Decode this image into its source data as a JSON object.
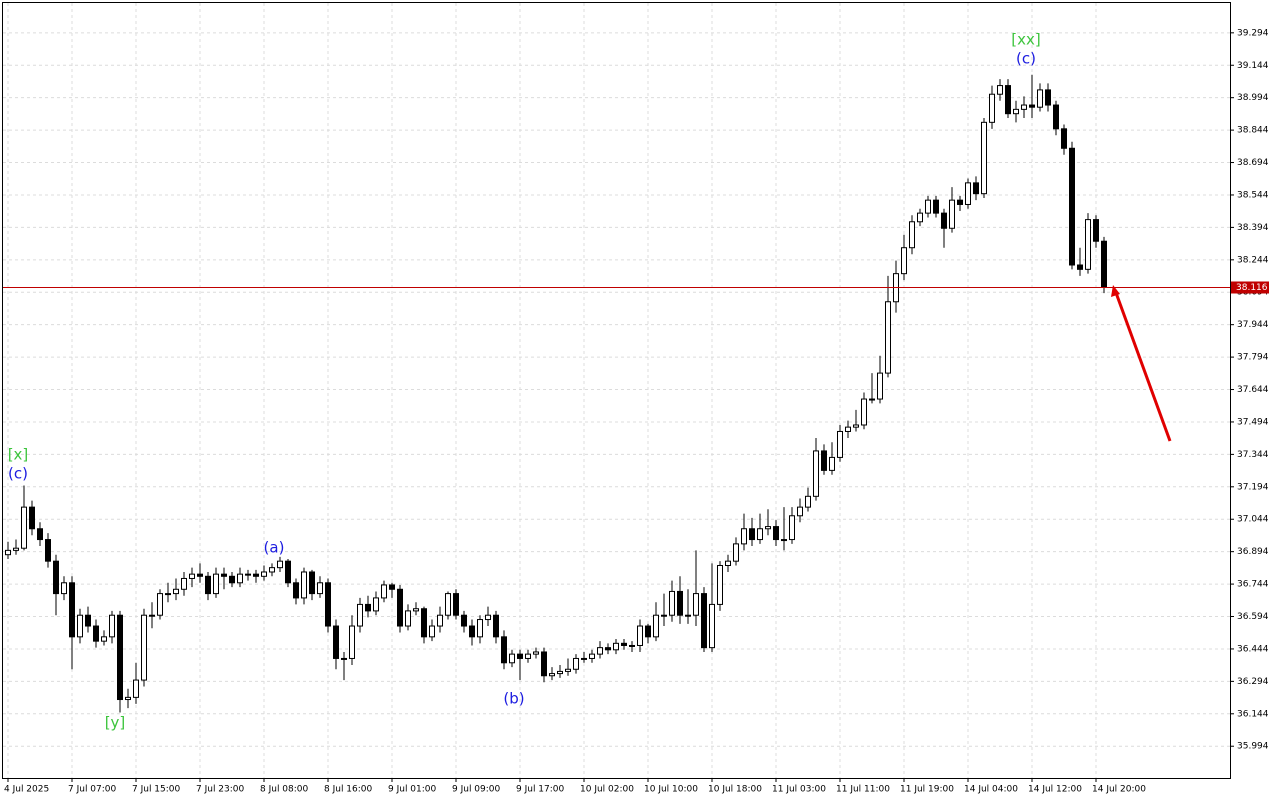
{
  "chart_data": {
    "type": "candlestick",
    "categories": [
      "4 Jul 2025",
      null,
      null,
      null,
      null,
      null,
      null,
      null,
      "7 Jul 07:00",
      null,
      null,
      null,
      null,
      null,
      null,
      null,
      "7 Jul 15:00",
      null,
      null,
      null,
      null,
      null,
      null,
      null,
      "7 Jul 23:00",
      null,
      null,
      null,
      null,
      null,
      null,
      null,
      "8 Jul 08:00",
      null,
      null,
      null,
      null,
      null,
      null,
      null,
      "8 Jul 16:00",
      null,
      null,
      null,
      null,
      null,
      null,
      null,
      "9 Jul 01:00",
      null,
      null,
      null,
      null,
      null,
      null,
      null,
      "9 Jul 09:00",
      null,
      null,
      null,
      null,
      null,
      null,
      null,
      "9 Jul 17:00",
      null,
      null,
      null,
      null,
      null,
      null,
      null,
      "10 Jul 02:00",
      null,
      null,
      null,
      null,
      null,
      null,
      null,
      "10 Jul 10:00",
      null,
      null,
      null,
      null,
      null,
      null,
      null,
      "10 Jul 18:00",
      null,
      null,
      null,
      null,
      null,
      null,
      null,
      "11 Jul 03:00",
      null,
      null,
      null,
      null,
      null,
      null,
      null,
      "11 Jul 11:00",
      null,
      null,
      null,
      null,
      null,
      null,
      null,
      "11 Jul 19:00",
      null,
      null,
      null,
      null,
      null,
      null,
      null,
      "14 Jul 04:00",
      null,
      null,
      null,
      null,
      null,
      null,
      null,
      "14 Jul 12:00",
      null,
      null,
      null,
      null,
      null,
      null,
      null,
      "14 Jul 20:00",
      null
    ],
    "open": [
      36.88,
      36.9,
      36.91,
      37.1,
      37.0,
      36.95,
      36.85,
      36.7,
      36.75,
      36.5,
      36.6,
      36.55,
      36.48,
      36.5,
      36.6,
      36.21,
      36.22,
      36.3,
      36.6,
      36.6,
      36.7,
      36.7,
      36.72,
      36.77,
      36.79,
      36.78,
      36.7,
      36.79,
      36.78,
      36.75,
      36.79,
      36.79,
      36.78,
      36.8,
      36.82,
      36.85,
      36.75,
      36.68,
      36.8,
      36.7,
      36.75,
      36.55,
      36.4,
      36.4,
      36.55,
      36.65,
      36.62,
      36.68,
      36.74,
      36.72,
      36.55,
      36.62,
      36.63,
      36.5,
      36.55,
      36.6,
      36.7,
      36.6,
      36.55,
      36.5,
      36.58,
      36.6,
      36.5,
      36.38,
      36.42,
      36.4,
      36.42,
      36.43,
      36.32,
      36.33,
      36.34,
      36.35,
      36.4,
      36.4,
      36.42,
      36.45,
      36.44,
      36.47,
      36.46,
      36.46,
      36.55,
      36.5,
      36.6,
      36.6,
      36.71,
      36.6,
      36.6,
      36.7,
      36.45,
      36.65,
      36.83,
      36.85,
      36.93,
      37.0,
      36.95,
      37.0,
      37.01,
      36.95,
      36.95,
      37.06,
      37.1,
      37.15,
      37.36,
      37.27,
      37.33,
      37.45,
      37.47,
      37.48,
      37.6,
      37.6,
      37.72,
      38.05,
      38.18,
      38.3,
      38.42,
      38.46,
      38.52,
      38.46,
      38.39,
      38.52,
      38.5,
      38.6,
      38.55,
      38.88,
      39.01,
      39.05,
      38.92,
      38.94,
      38.96,
      38.95,
      39.03,
      38.96,
      38.85,
      38.76,
      38.22,
      38.2,
      38.43,
      38.33
    ],
    "high": [
      36.94,
      36.95,
      37.2,
      37.13,
      37.03,
      36.98,
      36.88,
      36.78,
      36.78,
      36.63,
      36.64,
      36.58,
      36.53,
      36.62,
      36.62,
      36.26,
      36.38,
      36.63,
      36.66,
      36.72,
      36.75,
      36.77,
      36.8,
      36.82,
      36.84,
      36.8,
      36.82,
      36.82,
      36.8,
      36.82,
      36.81,
      36.81,
      36.83,
      36.84,
      36.87,
      36.86,
      36.77,
      36.82,
      36.81,
      36.78,
      36.77,
      36.58,
      36.43,
      36.6,
      36.68,
      36.69,
      36.71,
      36.76,
      36.75,
      36.74,
      36.65,
      36.66,
      36.64,
      36.58,
      36.64,
      36.71,
      36.72,
      36.62,
      36.58,
      36.6,
      36.64,
      36.62,
      36.53,
      36.44,
      36.44,
      36.44,
      36.45,
      36.45,
      36.36,
      36.37,
      36.4,
      36.42,
      36.43,
      36.44,
      36.48,
      36.47,
      36.49,
      36.49,
      36.48,
      36.58,
      36.56,
      36.66,
      36.7,
      36.76,
      36.78,
      36.72,
      36.9,
      36.73,
      36.84,
      36.85,
      36.88,
      36.96,
      37.07,
      37.05,
      37.07,
      37.09,
      37.04,
      37.1,
      37.1,
      37.14,
      37.19,
      37.42,
      37.39,
      37.4,
      37.48,
      37.5,
      37.55,
      37.63,
      37.72,
      37.8,
      38.17,
      38.24,
      38.36,
      38.45,
      38.48,
      38.54,
      38.54,
      38.48,
      38.58,
      38.54,
      38.62,
      38.63,
      38.9,
      39.05,
      39.08,
      39.08,
      38.98,
      39.0,
      39.1,
      39.06,
      39.06,
      38.98,
      38.87,
      38.79,
      38.3,
      38.46,
      38.45,
      38.35
    ],
    "low": [
      36.86,
      36.88,
      36.9,
      36.97,
      36.92,
      36.82,
      36.6,
      36.67,
      36.35,
      36.47,
      36.52,
      36.45,
      36.46,
      36.47,
      36.15,
      36.17,
      36.19,
      36.27,
      36.54,
      36.58,
      36.66,
      36.67,
      36.69,
      36.73,
      36.75,
      36.67,
      36.68,
      36.72,
      36.73,
      36.73,
      36.76,
      36.75,
      36.76,
      36.78,
      36.8,
      36.73,
      36.65,
      36.65,
      36.67,
      36.68,
      36.52,
      36.35,
      36.3,
      36.37,
      36.52,
      36.59,
      36.6,
      36.66,
      36.68,
      36.52,
      36.53,
      36.6,
      36.47,
      36.48,
      36.52,
      36.58,
      36.58,
      36.52,
      36.46,
      36.47,
      36.55,
      36.47,
      36.35,
      36.36,
      36.3,
      36.38,
      36.4,
      36.29,
      36.3,
      36.31,
      36.32,
      36.33,
      36.38,
      36.38,
      36.4,
      36.42,
      36.42,
      36.44,
      36.43,
      36.43,
      36.47,
      36.48,
      36.55,
      36.57,
      36.56,
      36.56,
      36.55,
      36.43,
      36.43,
      36.62,
      36.8,
      36.83,
      36.9,
      36.92,
      36.93,
      36.97,
      36.92,
      36.9,
      36.93,
      37.03,
      37.08,
      37.13,
      37.25,
      37.25,
      37.31,
      37.42,
      37.45,
      37.46,
      37.58,
      37.58,
      37.7,
      38.0,
      38.15,
      38.27,
      38.4,
      38.44,
      38.44,
      38.3,
      38.37,
      38.47,
      38.48,
      38.52,
      38.53,
      38.85,
      38.98,
      38.9,
      38.88,
      38.9,
      38.9,
      38.93,
      38.93,
      38.82,
      38.73,
      38.2,
      38.17,
      38.18,
      38.3,
      38.09
    ],
    "close": [
      36.9,
      36.91,
      37.1,
      37.0,
      36.95,
      36.85,
      36.7,
      36.75,
      36.5,
      36.6,
      36.55,
      36.48,
      36.5,
      36.6,
      36.21,
      36.22,
      36.3,
      36.6,
      36.6,
      36.7,
      36.7,
      36.72,
      36.77,
      36.79,
      36.78,
      36.7,
      36.79,
      36.78,
      36.75,
      36.79,
      36.79,
      36.78,
      36.8,
      36.82,
      36.85,
      36.75,
      36.68,
      36.8,
      36.7,
      36.75,
      36.55,
      36.4,
      36.4,
      36.55,
      36.65,
      36.62,
      36.68,
      36.74,
      36.72,
      36.55,
      36.62,
      36.63,
      36.5,
      36.55,
      36.6,
      36.7,
      36.6,
      36.55,
      36.5,
      36.58,
      36.6,
      36.5,
      36.38,
      36.42,
      36.4,
      36.42,
      36.43,
      36.32,
      36.33,
      36.34,
      36.35,
      36.4,
      36.4,
      36.42,
      36.45,
      36.44,
      36.47,
      36.46,
      36.46,
      36.55,
      36.5,
      36.6,
      36.6,
      36.71,
      36.6,
      36.6,
      36.7,
      36.45,
      36.65,
      36.83,
      36.85,
      36.93,
      37.0,
      36.95,
      37.0,
      37.01,
      36.95,
      36.95,
      37.06,
      37.1,
      37.15,
      37.36,
      37.27,
      37.33,
      37.45,
      37.47,
      37.48,
      37.6,
      37.6,
      37.72,
      38.05,
      38.18,
      38.3,
      38.42,
      38.46,
      38.52,
      38.46,
      38.39,
      38.52,
      38.5,
      38.6,
      38.55,
      38.88,
      39.01,
      39.05,
      38.92,
      38.94,
      38.96,
      38.95,
      39.03,
      38.96,
      38.85,
      38.76,
      38.22,
      38.2,
      38.43,
      38.33,
      38.116
    ],
    "ylim": [
      35.847,
      39.432
    ],
    "yticks": [
      39.294,
      39.144,
      38.994,
      38.844,
      38.694,
      38.544,
      38.394,
      38.244,
      38.094,
      37.944,
      37.794,
      37.644,
      37.494,
      37.344,
      37.194,
      37.044,
      36.894,
      36.744,
      36.594,
      36.444,
      36.294,
      36.144,
      35.994
    ],
    "current_price": 38.116,
    "current_price_color": "#c00000",
    "grid": true,
    "bull_color": "#ffffff",
    "bear_color": "#000000",
    "annotations": [
      {
        "text": "[x]",
        "color": "#3cc43c"
      },
      {
        "text": "(c)",
        "color": "#1c1ce0"
      },
      {
        "text": "[y]",
        "color": "#3cc43c"
      },
      {
        "text": "(a)",
        "color": "#1c1ce0"
      },
      {
        "text": "(b)",
        "color": "#1c1ce0"
      },
      {
        "text": "[xx]",
        "color": "#3cc43c"
      },
      {
        "text": "(c)",
        "color": "#1c1ce0"
      }
    ]
  }
}
